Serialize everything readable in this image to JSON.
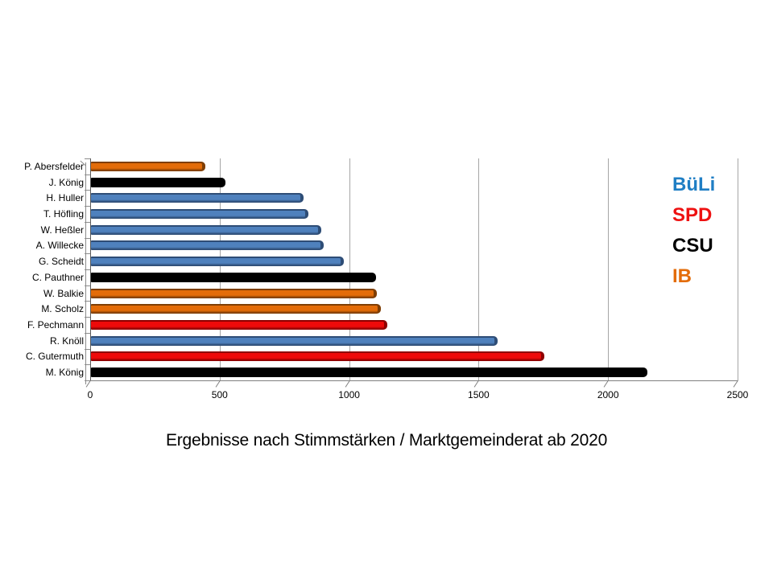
{
  "page": {
    "background": "#ffffff"
  },
  "chart_data": {
    "type": "bar",
    "orientation": "horizontal",
    "title": "Ergebnisse nach Stimmstärken / Marktgemeinderat ab 2020",
    "xlabel": "",
    "ylabel": "",
    "xlim": [
      0,
      2500
    ],
    "x_ticks": [
      0,
      500,
      1000,
      1500,
      2000,
      2500
    ],
    "grid": true,
    "legend_position": "inside-top-right",
    "legend_items": [
      "BüLi",
      "SPD",
      "CSU",
      "IB"
    ],
    "parties": {
      "BüLi": {
        "fill": "#4f81bd",
        "edge": "#2e4d76",
        "legend_text_color": "#1f7ec4"
      },
      "SPD": {
        "fill": "#ee0a0a",
        "edge": "#8e0000",
        "legend_text_color": "#ee1111"
      },
      "CSU": {
        "fill": "#000000",
        "edge": "#000000",
        "legend_text_color": "#000000"
      },
      "IB": {
        "fill": "#e36c09",
        "edge": "#7f3e04",
        "legend_text_color": "#e36c09"
      }
    },
    "rows": [
      {
        "label": "P. Abersfelder",
        "party": "IB",
        "value": 440
      },
      {
        "label": "J. König",
        "party": "CSU",
        "value": 520
      },
      {
        "label": "H. Huller",
        "party": "BüLi",
        "value": 820
      },
      {
        "label": "T. Höfling",
        "party": "BüLi",
        "value": 840
      },
      {
        "label": "W. Heßler",
        "party": "BüLi",
        "value": 890
      },
      {
        "label": "A. Willecke",
        "party": "BüLi",
        "value": 900
      },
      {
        "label": "G. Scheidt",
        "party": "BüLi",
        "value": 975
      },
      {
        "label": "C. Pauthner",
        "party": "CSU",
        "value": 1100
      },
      {
        "label": "W. Balkie",
        "party": "IB",
        "value": 1105
      },
      {
        "label": "M. Scholz",
        "party": "IB",
        "value": 1120
      },
      {
        "label": "F. Pechmann",
        "party": "SPD",
        "value": 1145
      },
      {
        "label": "R. Knöll",
        "party": "BüLi",
        "value": 1570
      },
      {
        "label": "C. Gutermuth",
        "party": "SPD",
        "value": 1750
      },
      {
        "label": "M. König",
        "party": "CSU",
        "value": 2150
      }
    ],
    "colors": {
      "gridline": "#a6a6a6",
      "axis": "#808080",
      "text": "#000000"
    }
  }
}
